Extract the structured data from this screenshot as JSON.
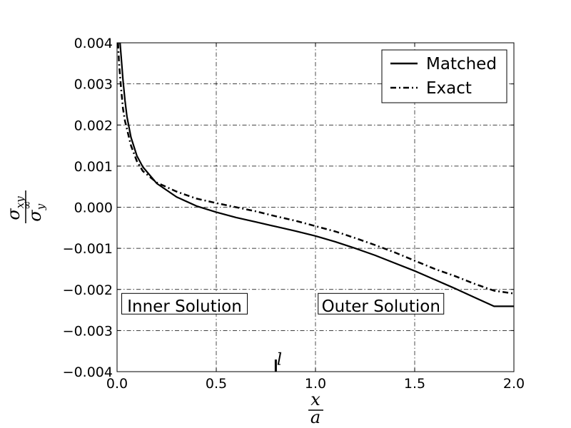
{
  "chart_data": {
    "type": "line",
    "xlabel": {
      "numerator": "x",
      "denominator": "a"
    },
    "ylabel": {
      "numerator": {
        "base": "σ",
        "sub": "xy"
      },
      "denominator": {
        "base": "σ",
        "sub": "y",
        "sup": "∞"
      }
    },
    "xlim": [
      0.0,
      2.0
    ],
    "ylim": [
      -0.004,
      0.004
    ],
    "xticks": [
      0.0,
      0.5,
      1.0,
      1.5,
      2.0
    ],
    "xtick_labels": [
      "0.0",
      "0.5",
      "1.0",
      "1.5",
      "2.0"
    ],
    "yticks": [
      0.004,
      0.003,
      0.002,
      0.001,
      0.0,
      -0.001,
      -0.002,
      -0.003,
      -0.004
    ],
    "ytick_labels": [
      "0.004",
      "0.003",
      "0.002",
      "0.001",
      "0.000",
      "−0.001",
      "−0.002",
      "−0.003",
      "−0.004"
    ],
    "grid": true,
    "legend_position": "top-right",
    "series": [
      {
        "name": "Matched",
        "style": "solid",
        "color": "#000000",
        "x": [
          0.015,
          0.02,
          0.03,
          0.04,
          0.05,
          0.07,
          0.1,
          0.13,
          0.2,
          0.3,
          0.4,
          0.5,
          0.6,
          0.7,
          0.8,
          0.9,
          1.0,
          1.1,
          1.2,
          1.3,
          1.4,
          1.5,
          1.6,
          1.7,
          1.8,
          1.9,
          2.0
        ],
        "y": [
          0.004,
          0.0037,
          0.0031,
          0.0026,
          0.0022,
          0.0017,
          0.00125,
          0.00098,
          0.00058,
          0.00025,
          3e-05,
          -0.00012,
          -0.00025,
          -0.00036,
          -0.00047,
          -0.00058,
          -0.0007,
          -0.00084,
          -0.001,
          -0.00117,
          -0.00136,
          -0.00155,
          -0.00176,
          -0.00197,
          -0.00219,
          -0.00241,
          -0.00241
        ]
      },
      {
        "name": "Exact",
        "style": "dashdot",
        "color": "#000000",
        "x": [
          0.005,
          0.01,
          0.02,
          0.03,
          0.04,
          0.05,
          0.07,
          0.1,
          0.13,
          0.2,
          0.3,
          0.4,
          0.5,
          0.6,
          0.7,
          0.8,
          0.9,
          1.0,
          1.1,
          1.2,
          1.3,
          1.4,
          1.5,
          1.6,
          1.7,
          1.8,
          1.9,
          2.0
        ],
        "y": [
          0.004,
          0.0035,
          0.0029,
          0.0024,
          0.0021,
          0.0019,
          0.0015,
          0.00112,
          0.00088,
          0.0006,
          0.00038,
          0.00021,
          0.0001,
          0.0,
          -0.0001,
          -0.00022,
          -0.00033,
          -0.00046,
          -0.00059,
          -0.00075,
          -0.00092,
          -0.0011,
          -0.0013,
          -0.0015,
          -0.00167,
          -0.00186,
          -0.00203,
          -0.0021
        ]
      }
    ],
    "annotations": [
      {
        "text": "Inner Solution",
        "x": 0.34,
        "y": -0.0024,
        "boxed": true
      },
      {
        "text": "Outer Solution",
        "x": 1.33,
        "y": -0.0024,
        "boxed": true
      },
      {
        "text": "l",
        "x": 0.8,
        "y": -0.0034,
        "marker": "vertical-tick"
      }
    ]
  }
}
